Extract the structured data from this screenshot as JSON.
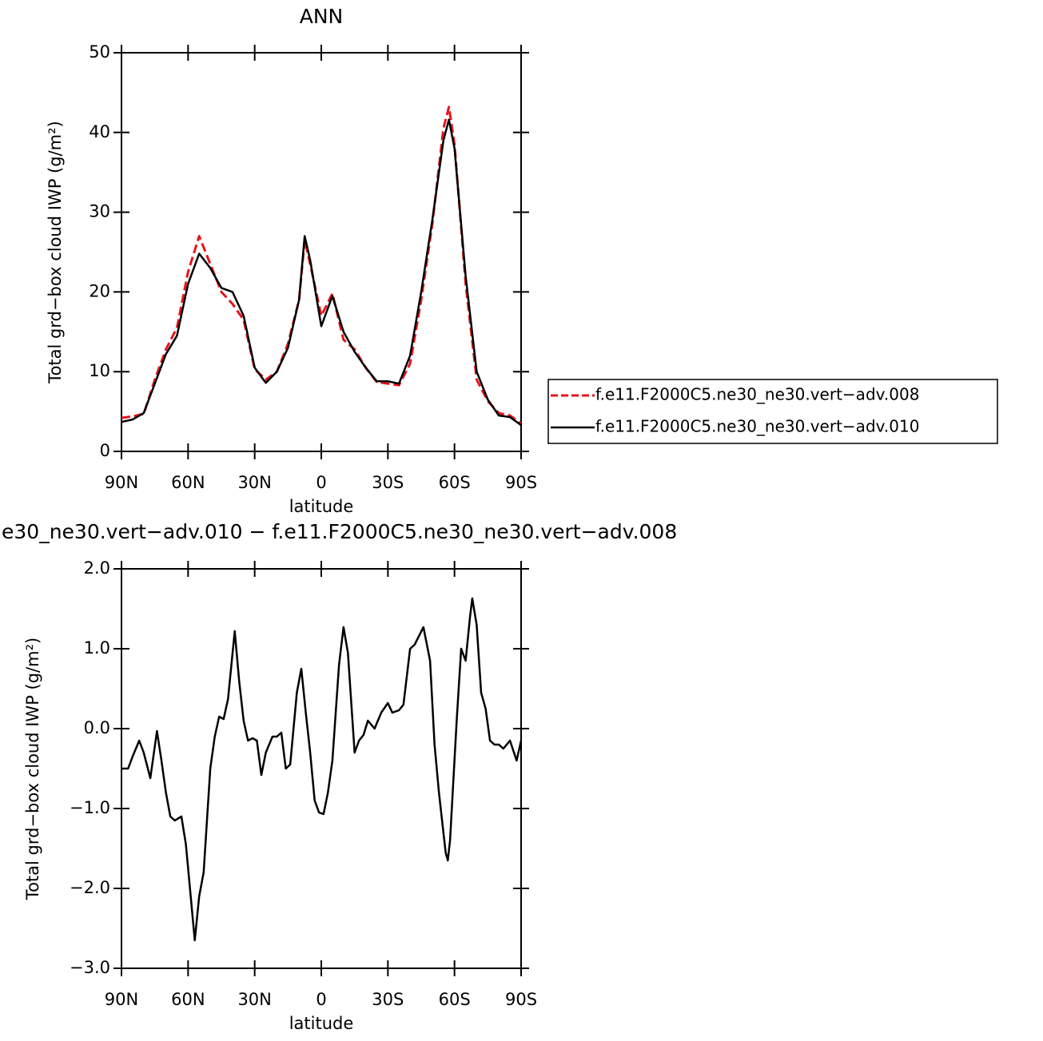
{
  "chart_data": [
    {
      "type": "line",
      "title": "ANN",
      "xlabel": "latitude",
      "ylabel": "Total grd−box cloud IWP (g/m²)",
      "x": [
        90,
        85,
        80,
        75,
        70,
        65,
        60,
        55,
        50,
        45,
        40,
        35,
        30,
        25,
        20,
        15,
        10,
        7.5,
        5,
        0,
        -5,
        -10,
        -15,
        -20,
        -25,
        -30,
        -35,
        -40,
        -45,
        -50,
        -55,
        -57.5,
        -60,
        -65,
        -70,
        -75,
        -80,
        -85,
        -90
      ],
      "series": [
        {
          "name": "f.e11.F2000C5.ne30_ne30.vert−adv.008",
          "color": "#e8141b",
          "dashed": true,
          "values": [
            4.2,
            4.4,
            4.7,
            9,
            12.8,
            15.5,
            22.5,
            27,
            23.5,
            20,
            18.5,
            16.5,
            10.3,
            9,
            10,
            13.5,
            19,
            26.5,
            23.5,
            17,
            19.8,
            14,
            12.8,
            10.5,
            8.7,
            8.5,
            8.3,
            11,
            19,
            28.5,
            40.5,
            43.2,
            38.5,
            21,
            9,
            6.3,
            4.8,
            4.5,
            3.5
          ]
        },
        {
          "name": "f.e11.F2000C5.ne30_ne30.vert−adv.010",
          "color": "#000000",
          "dashed": false,
          "values": [
            3.7,
            4.0,
            4.8,
            8.5,
            12.2,
            14.5,
            21,
            24.8,
            23,
            20.5,
            20,
            17,
            10.5,
            8.6,
            10,
            13,
            19,
            27,
            24,
            15.7,
            19.5,
            15,
            12.5,
            10.5,
            8.8,
            8.8,
            8.5,
            12,
            20,
            29,
            39,
            41.6,
            38,
            22,
            10,
            6.5,
            4.5,
            4.3,
            3.3
          ]
        }
      ],
      "xlim": [
        90,
        -90
      ],
      "xticks": [
        {
          "value": 90,
          "label": "90N"
        },
        {
          "value": 60,
          "label": "60N"
        },
        {
          "value": 30,
          "label": "30N"
        },
        0,
        {
          "value": -30,
          "label": "30S"
        },
        {
          "value": -60,
          "label": "60S"
        },
        {
          "value": -90,
          "label": "90S"
        }
      ],
      "ylim": [
        0,
        50
      ],
      "yticks": [
        0,
        10,
        20,
        30,
        40,
        50
      ],
      "legend": "right"
    },
    {
      "type": "line",
      "title": "e30_ne30.vert−adv.010 − f.e11.F2000C5.ne30_ne30.vert−adv.008",
      "xlabel": "latitude",
      "ylabel": "Total grd−box cloud IWP (g/m²)",
      "x": [
        90,
        87,
        85,
        82,
        80,
        77,
        74,
        72,
        70,
        68,
        66,
        63,
        61,
        57,
        55,
        53,
        50,
        48,
        46,
        44,
        42,
        39,
        37,
        35,
        33,
        31,
        29,
        27,
        25,
        22,
        20,
        18,
        16,
        14,
        11,
        9,
        7,
        5,
        3,
        1,
        -1,
        -3,
        -5,
        -8,
        -10,
        -12,
        -15,
        -17,
        -19,
        -21,
        -24,
        -27,
        -30,
        -32,
        -35,
        -37,
        -40,
        -42,
        -46,
        -49,
        -51,
        -53,
        -56,
        -57,
        -58,
        -61,
        -63,
        -65,
        -67,
        -68,
        -70,
        -72,
        -74,
        -76,
        -78,
        -80,
        -82,
        -85,
        -88,
        -90
      ],
      "series": [
        {
          "color": "#000000",
          "dashed": false,
          "values": [
            -0.5,
            -0.5,
            -0.35,
            -0.15,
            -0.3,
            -0.62,
            -0.03,
            -0.4,
            -0.8,
            -1.1,
            -1.15,
            -1.1,
            -1.45,
            -2.65,
            -2.1,
            -1.8,
            -0.5,
            -0.1,
            0.15,
            0.12,
            0.37,
            1.22,
            0.6,
            0.1,
            -0.15,
            -0.12,
            -0.15,
            -0.58,
            -0.3,
            -0.1,
            -0.1,
            -0.05,
            -0.5,
            -0.45,
            0.45,
            0.75,
            0.2,
            -0.3,
            -0.9,
            -1.05,
            -1.07,
            -0.8,
            -0.4,
            0.8,
            1.27,
            0.95,
            -0.3,
            -0.15,
            -0.08,
            0.1,
            0,
            0.2,
            0.32,
            0.2,
            0.23,
            0.3,
            1.0,
            1.05,
            1.27,
            0.85,
            -0.2,
            -0.8,
            -1.55,
            -1.65,
            -1.4,
            0.1,
            1.0,
            0.85,
            1.4,
            1.63,
            1.3,
            0.45,
            0.25,
            -0.15,
            -0.2,
            -0.2,
            -0.25,
            -0.15,
            -0.4,
            -0.15
          ]
        }
      ],
      "xlim": [
        90,
        -90
      ],
      "xticks": [
        {
          "value": 90,
          "label": "90N"
        },
        {
          "value": 60,
          "label": "60N"
        },
        {
          "value": 30,
          "label": "30N"
        },
        0,
        {
          "value": -30,
          "label": "30S"
        },
        {
          "value": -60,
          "label": "60S"
        },
        {
          "value": -90,
          "label": "90S"
        }
      ],
      "ylim": [
        -3,
        2
      ],
      "yticks": [
        {
          "value": -3,
          "label": "−3.0"
        },
        {
          "value": -2,
          "label": "−2.0"
        },
        {
          "value": -1,
          "label": "−1.0"
        },
        {
          "value": 0,
          "label": "0.0"
        },
        {
          "value": 1,
          "label": "1.0"
        },
        {
          "value": 2,
          "label": "2.0"
        }
      ]
    }
  ]
}
